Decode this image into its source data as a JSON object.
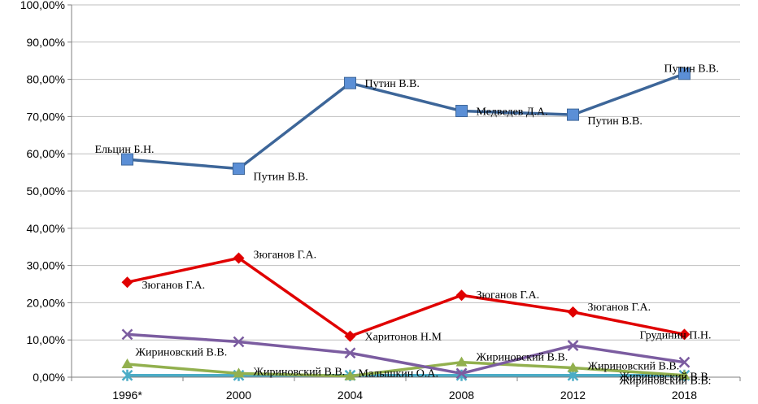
{
  "chart_data": {
    "type": "line",
    "categories": [
      "1996*",
      "2000",
      "2004",
      "2008",
      "2012",
      "2018"
    ],
    "ylim": [
      0,
      100
    ],
    "y_tick_labels": [
      "0,00%",
      "10,00%",
      "20,00%",
      "30,00%",
      "40,00%",
      "50,00%",
      "60,00%",
      "70,00%",
      "80,00%",
      "90,00%",
      "100,00%"
    ],
    "grid": true,
    "legend": "none",
    "series": [
      {
        "color": "#3d6699",
        "marker": "square",
        "marker_color": "#5b8fd6",
        "values": [
          58.5,
          56.0,
          79.0,
          71.5,
          70.5,
          81.5
        ],
        "point_labels": [
          "Ельцин Б.Н.",
          "Путин В.В.",
          "Путин В.В.",
          "Медведев Д.А.",
          "Путин В.В.",
          "Путин В.В."
        ]
      },
      {
        "color": "#e00000",
        "marker": "diamond",
        "marker_color": "#e00000",
        "values": [
          25.5,
          32.0,
          11.0,
          22.0,
          17.5,
          11.5
        ],
        "point_labels": [
          "Зюганов Г.А.",
          "Зюганов Г.А.",
          "Харитонов Н.М",
          "Зюганов Г.А.",
          "Зюганов Г.А.",
          "Грудинин П.Н."
        ]
      },
      {
        "color": "#7b5ca0",
        "marker": "x",
        "marker_color": "#7b5ca0",
        "values": [
          11.5,
          9.5,
          6.5,
          1.0,
          8.5,
          4.0
        ],
        "point_labels": [
          "Жириновский В.В.",
          "",
          "",
          "",
          "",
          "Жириновский В.В."
        ]
      },
      {
        "color": "#92b04e",
        "marker": "triangle",
        "marker_color": "#92b04e",
        "values": [
          3.5,
          1.0,
          0.3,
          4.0,
          2.5,
          0.5
        ],
        "point_labels": [
          "",
          "Жириновский В.В.",
          "",
          "Жириновский В.В.",
          "Жириновский В.В.",
          "Жириновский В.В."
        ]
      },
      {
        "color": "#4bacc6",
        "marker": "star",
        "marker_color": "#4bacc6",
        "values": [
          0.5,
          0.5,
          0.5,
          0.5,
          0.5,
          0.5
        ],
        "point_labels": [
          "",
          "",
          "Малышкин О.А.",
          "",
          "",
          ""
        ]
      }
    ]
  }
}
